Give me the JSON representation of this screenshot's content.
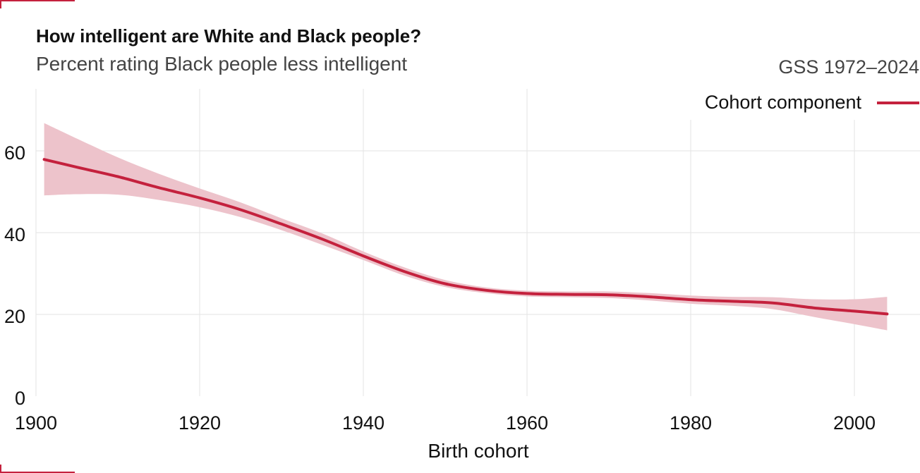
{
  "header": {
    "title": "How intelligent are White and Black people?",
    "subtitle": "Percent rating Black people less intelligent",
    "source": "GSS 1972–2024"
  },
  "legend": {
    "label": "Cohort component"
  },
  "colors": {
    "line": "#c4213d",
    "band": "#edc3cb",
    "grid": "#e3e3e3",
    "accent": "#c4213d"
  },
  "chart_data": {
    "type": "line",
    "title": "How intelligent are White and Black people?",
    "subtitle": "Percent rating Black people less intelligent",
    "xlabel": "Birth cohort",
    "ylabel": "",
    "xlim": [
      1900,
      2008
    ],
    "ylim": [
      0,
      73
    ],
    "x_ticks": [
      1900,
      1920,
      1940,
      1960,
      1980,
      2000
    ],
    "y_ticks": [
      0,
      20,
      40,
      60
    ],
    "grid": true,
    "legend_position": "top-right",
    "series": [
      {
        "name": "Cohort component",
        "x": [
          1901,
          1905,
          1910,
          1915,
          1920,
          1925,
          1930,
          1935,
          1940,
          1945,
          1950,
          1955,
          1960,
          1965,
          1970,
          1975,
          1980,
          1985,
          1990,
          1995,
          2000,
          2004
        ],
        "y": [
          57.9,
          56.0,
          53.7,
          51.0,
          48.5,
          45.6,
          42.1,
          38.4,
          34.3,
          30.5,
          27.5,
          25.9,
          25.1,
          24.9,
          24.8,
          24.3,
          23.6,
          23.2,
          22.8,
          21.6,
          20.8,
          20.1
        ],
        "lower": [
          49.1,
          49.4,
          49.3,
          48.0,
          46.2,
          43.8,
          40.6,
          37.0,
          33.3,
          29.5,
          26.7,
          25.2,
          24.4,
          24.2,
          24.0,
          23.4,
          22.6,
          22.1,
          21.3,
          19.4,
          17.6,
          16.1
        ],
        "upper": [
          66.8,
          63.0,
          58.4,
          54.4,
          50.8,
          47.4,
          43.5,
          39.8,
          35.4,
          31.5,
          28.4,
          26.6,
          25.8,
          25.6,
          25.6,
          25.2,
          24.6,
          24.3,
          24.2,
          23.7,
          23.7,
          24.3
        ]
      }
    ]
  }
}
